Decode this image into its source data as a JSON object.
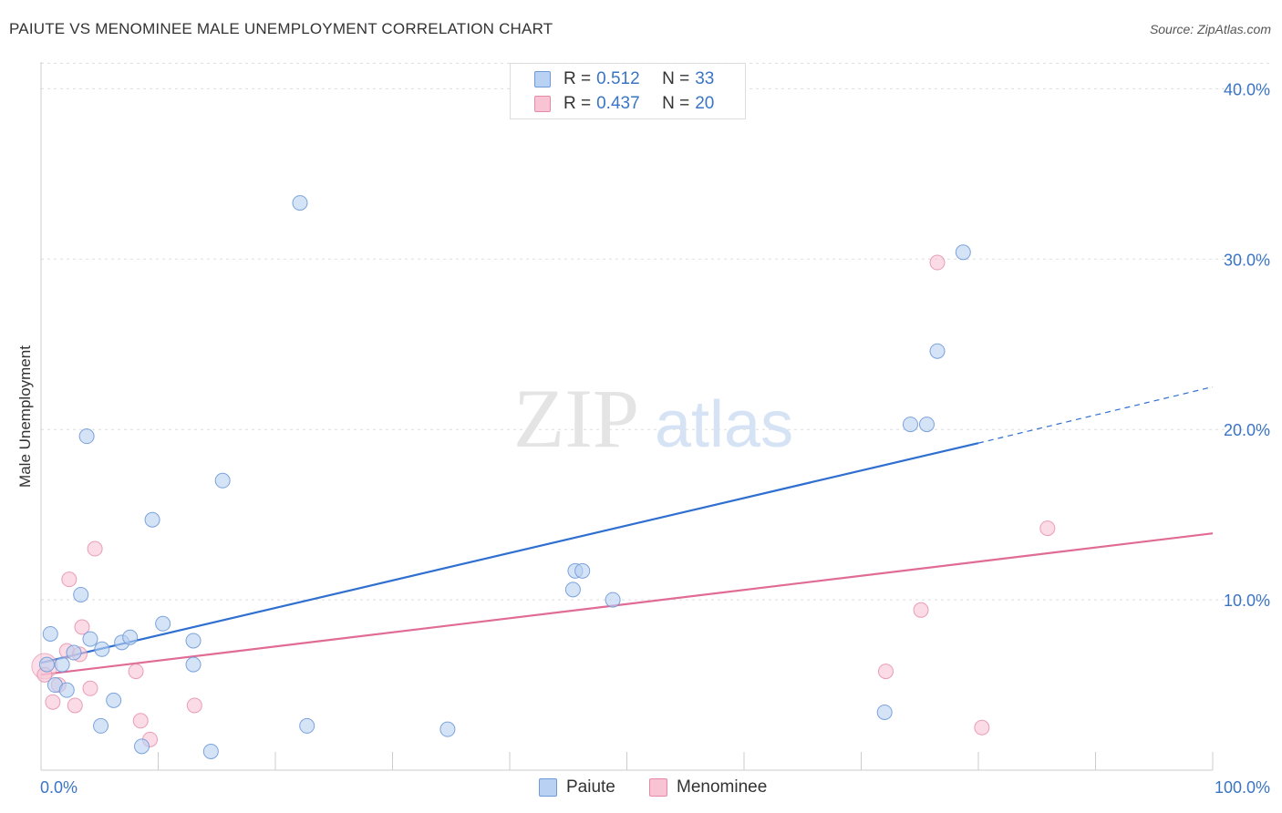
{
  "title": "PAIUTE VS MENOMINEE MALE UNEMPLOYMENT CORRELATION CHART",
  "source": "Source: ZipAtlas.com",
  "watermark": {
    "zip": "ZIP",
    "atlas": "atlas"
  },
  "legend": {
    "r_label": "R =",
    "n_label": "N =",
    "paiute": {
      "r": "0.512",
      "n": "33"
    },
    "menominee": {
      "r": "0.437",
      "n": "20"
    }
  },
  "bottom_legend": {
    "paiute": "Paiute",
    "menominee": "Menominee"
  },
  "colors": {
    "paiute_fill": "#b9d1f2",
    "paiute_stroke": "#6f9ad8",
    "paiute_line": "#2f6fd0",
    "menominee_fill": "#f8c3d3",
    "menominee_stroke": "#e38aa8",
    "menominee_line": "#e06b95",
    "tick_label": "#3a75c4",
    "grid": "#dddddd"
  },
  "chart_data": {
    "type": "scatter",
    "title": "PAIUTE VS MENOMINEE MALE UNEMPLOYMENT CORRELATION CHART",
    "xlabel": "",
    "ylabel": "Male Unemployment",
    "xlim": [
      0,
      100
    ],
    "ylim": [
      0,
      42
    ],
    "x_tick_labels": [
      {
        "value": 0,
        "label": "0.0%"
      },
      {
        "value": 100,
        "label": "100.0%"
      }
    ],
    "y_ticks": [
      {
        "value": 10,
        "label": "10.0%"
      },
      {
        "value": 20,
        "label": "20.0%"
      },
      {
        "value": 30,
        "label": "30.0%"
      },
      {
        "value": 40,
        "label": "40.0%"
      }
    ],
    "series": [
      {
        "name": "Paiute",
        "points": [
          [
            0.5,
            6.2
          ],
          [
            0.8,
            8.0
          ],
          [
            1.2,
            5.0
          ],
          [
            1.8,
            6.2
          ],
          [
            2.2,
            4.7
          ],
          [
            2.8,
            6.9
          ],
          [
            3.4,
            10.3
          ],
          [
            3.9,
            19.6
          ],
          [
            4.2,
            7.7
          ],
          [
            5.1,
            2.6
          ],
          [
            5.2,
            7.1
          ],
          [
            6.2,
            4.1
          ],
          [
            6.9,
            7.5
          ],
          [
            7.6,
            7.8
          ],
          [
            8.6,
            1.4
          ],
          [
            9.5,
            14.7
          ],
          [
            10.4,
            8.6
          ],
          [
            13.0,
            6.2
          ],
          [
            13.0,
            7.6
          ],
          [
            14.5,
            1.1
          ],
          [
            15.5,
            17.0
          ],
          [
            22.1,
            33.3
          ],
          [
            22.7,
            2.6
          ],
          [
            34.7,
            2.4
          ],
          [
            45.4,
            10.6
          ],
          [
            45.6,
            11.7
          ],
          [
            46.2,
            11.7
          ],
          [
            48.8,
            10.0
          ],
          [
            72.0,
            3.4
          ],
          [
            74.2,
            20.3
          ],
          [
            75.6,
            20.3
          ],
          [
            76.5,
            24.6
          ],
          [
            78.7,
            30.4
          ]
        ],
        "trend": {
          "x0": 0,
          "y0": 6.3,
          "x1": 80,
          "y1": 19.2,
          "dash_to_x": 100,
          "dash_to_y": 22.5
        }
      },
      {
        "name": "Menominee",
        "points": [
          [
            0.3,
            5.6
          ],
          [
            1.0,
            4.0
          ],
          [
            1.5,
            5.0
          ],
          [
            2.2,
            7.0
          ],
          [
            2.4,
            11.2
          ],
          [
            2.9,
            3.8
          ],
          [
            3.3,
            6.8
          ],
          [
            3.5,
            8.4
          ],
          [
            4.2,
            4.8
          ],
          [
            4.6,
            13.0
          ],
          [
            8.1,
            5.8
          ],
          [
            8.5,
            2.9
          ],
          [
            9.3,
            1.8
          ],
          [
            13.1,
            3.8
          ],
          [
            72.1,
            5.8
          ],
          [
            75.1,
            9.4
          ],
          [
            76.5,
            29.8
          ],
          [
            80.3,
            2.5
          ],
          [
            85.9,
            14.2
          ]
        ],
        "large_point": [
          0.3,
          6.1
        ],
        "trend": {
          "x0": 0,
          "y0": 5.6,
          "x1": 100,
          "y1": 13.9
        }
      }
    ]
  }
}
